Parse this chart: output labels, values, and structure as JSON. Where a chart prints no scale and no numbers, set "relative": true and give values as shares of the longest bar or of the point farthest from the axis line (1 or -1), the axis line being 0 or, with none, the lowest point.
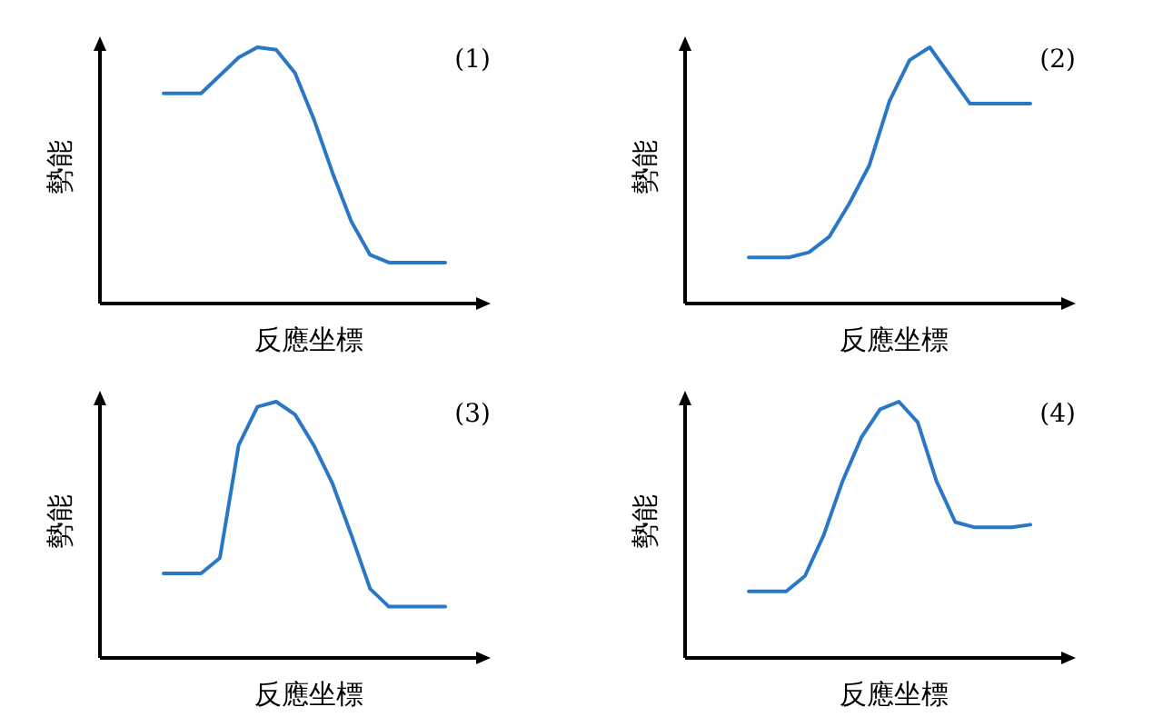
{
  "chart_data": [
    {
      "type": "line",
      "relative": true,
      "xlabel": "反應坐標",
      "ylabel": "勢能",
      "annotations": [
        "(1)"
      ],
      "categories": [
        null,
        null,
        null,
        null,
        null,
        null,
        null,
        null,
        null,
        null,
        null,
        null,
        null,
        null,
        null,
        null
      ],
      "series": [
        {
          "color": "#2a78c5",
          "values": [
            0.82,
            0.82,
            0.82,
            0.89,
            0.96,
            1,
            0.99,
            0.9,
            0.72,
            0.51,
            0.32,
            0.19,
            0.16,
            0.16,
            0.16,
            0.16
          ]
        }
      ]
    },
    {
      "type": "line",
      "relative": true,
      "xlabel": "反應坐標",
      "ylabel": "勢能",
      "annotations": [
        "(2)"
      ],
      "categories": [
        null,
        null,
        null,
        null,
        null,
        null,
        null,
        null,
        null,
        null,
        null,
        null,
        null,
        null,
        null
      ],
      "series": [
        {
          "color": "#2a78c5",
          "values": [
            0.18,
            0.18,
            0.18,
            0.2,
            0.26,
            0.39,
            0.54,
            0.79,
            0.95,
            1,
            0.89,
            0.78,
            0.78,
            0.78,
            0.78
          ]
        }
      ]
    },
    {
      "type": "line",
      "relative": true,
      "xlabel": "反應坐標",
      "ylabel": "勢能",
      "annotations": [
        "(3)"
      ],
      "categories": [
        null,
        null,
        null,
        null,
        null,
        null,
        null,
        null,
        null,
        null,
        null,
        null,
        null,
        null,
        null,
        null
      ],
      "series": [
        {
          "color": "#2a78c5",
          "values": [
            0.33,
            0.33,
            0.33,
            0.39,
            0.83,
            0.98,
            1,
            0.95,
            0.83,
            0.68,
            0.48,
            0.27,
            0.2,
            0.2,
            0.2,
            0.2
          ]
        }
      ]
    },
    {
      "type": "line",
      "relative": true,
      "xlabel": "反應坐標",
      "ylabel": "勢能",
      "annotations": [
        "(4)"
      ],
      "categories": [
        null,
        null,
        null,
        null,
        null,
        null,
        null,
        null,
        null,
        null,
        null,
        null,
        null,
        null,
        null,
        null
      ],
      "series": [
        {
          "color": "#2a78c5",
          "values": [
            0.26,
            0.26,
            0.26,
            0.32,
            0.48,
            0.69,
            0.86,
            0.97,
            1,
            0.92,
            0.69,
            0.53,
            0.51,
            0.51,
            0.51,
            0.52
          ]
        }
      ]
    }
  ]
}
